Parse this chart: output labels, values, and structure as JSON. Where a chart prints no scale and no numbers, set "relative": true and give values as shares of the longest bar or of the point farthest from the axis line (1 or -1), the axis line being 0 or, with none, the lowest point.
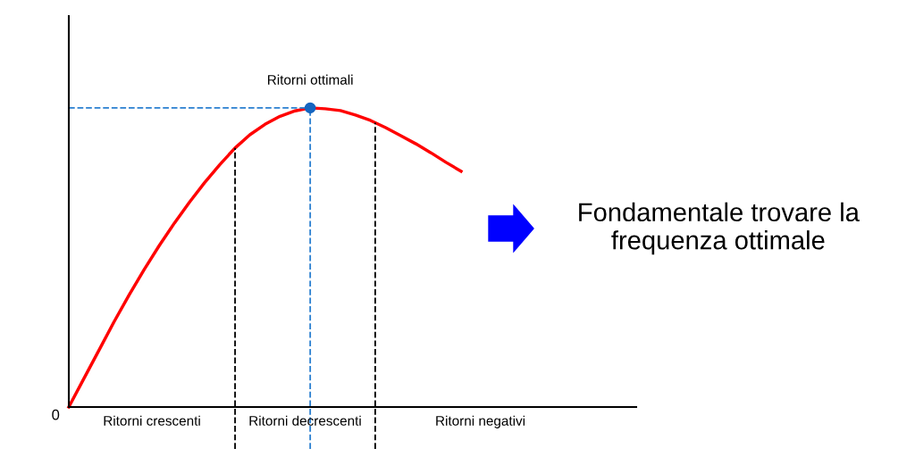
{
  "chart_data": {
    "type": "line",
    "relative": true,
    "categories": [
      null,
      null,
      null,
      null,
      null,
      null,
      null,
      null,
      null,
      null,
      null,
      null,
      null,
      null,
      null,
      null,
      null,
      null,
      null,
      null,
      null,
      null,
      null,
      null,
      null,
      null,
      null
    ],
    "series": [
      {
        "color": "#ff0000",
        "values": [
          0,
          0.095,
          0.19,
          0.285,
          0.375,
          0.46,
          0.54,
          0.615,
          0.685,
          0.75,
          0.81,
          0.865,
          0.91,
          0.945,
          0.972,
          0.99,
          1,
          0.997,
          0.991,
          0.976,
          0.958,
          0.934,
          0.907,
          0.88,
          0.85,
          0.818,
          0.788
        ]
      }
    ],
    "ref_lines": [
      {
        "axis": "y",
        "value": 1,
        "color": "#2a7fd0",
        "line_style": "dashed"
      }
    ],
    "annotations": [
      "0",
      "Ritorni crescenti",
      "Ritorni decrescenti",
      "Ritorni negativi",
      "Ritorni ottimali",
      "Fondamentale trovare la frequenza ottimale"
    ],
    "marker": "none",
    "line_style": "solid"
  }
}
